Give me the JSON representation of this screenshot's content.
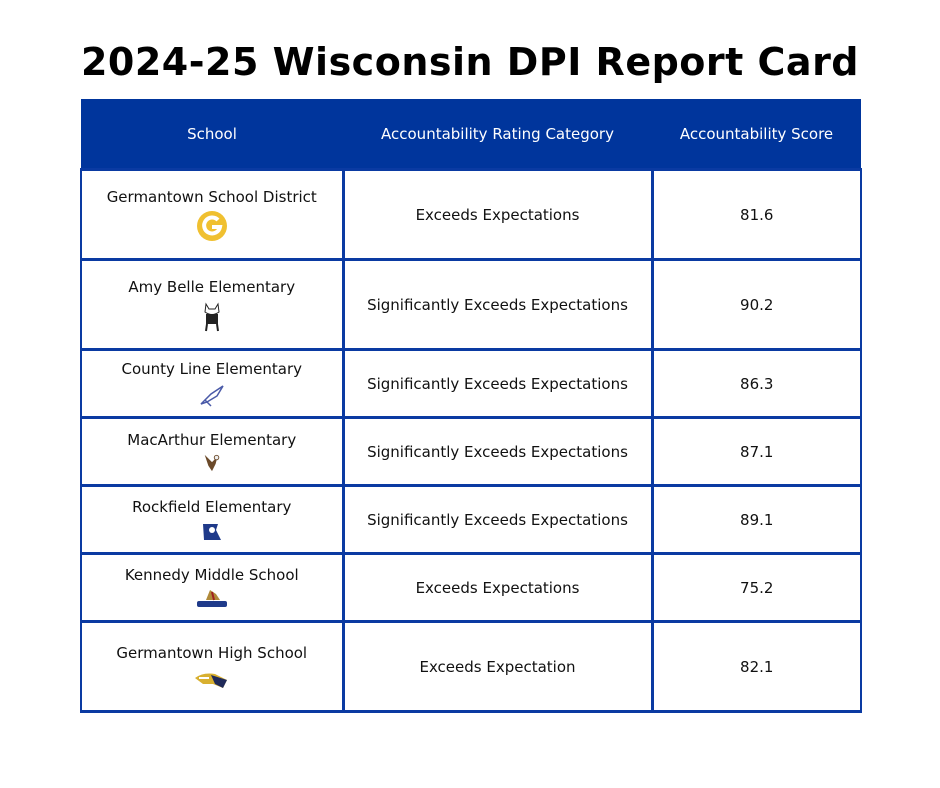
{
  "title": "2024-25 Wisconsin DPI Report Card",
  "table": {
    "headers": [
      "School",
      "Accountability Rating Category",
      "Accountability Score"
    ],
    "rows": [
      {
        "school": "Germantown School District",
        "rating": "Exceeds Expectations",
        "score": "81.6",
        "logo": "g-logo-icon"
      },
      {
        "school": "Amy Belle Elementary",
        "rating": "Significantly Exceeds Expectations",
        "score": "90.2",
        "logo": "mascot-cat-icon"
      },
      {
        "school": "County Line Elementary",
        "rating": "Significantly Exceeds Expectations",
        "score": "86.3",
        "logo": "mascot-bird-icon"
      },
      {
        "school": "MacArthur Elementary",
        "rating": "Significantly Exceeds Expectations",
        "score": "87.1",
        "logo": "eagle-icon"
      },
      {
        "school": "Rockfield Elementary",
        "rating": "Significantly Exceeds Expectations",
        "score": "89.1",
        "logo": "rockfield-r-icon"
      },
      {
        "school": "Kennedy Middle School",
        "rating": "Exceeds Expectations",
        "score": "75.2",
        "logo": "knight-icon"
      },
      {
        "school": "Germantown High School",
        "rating": "Exceeds Expectation",
        "score": "82.1",
        "logo": "warhawk-icon"
      }
    ]
  },
  "colors": {
    "header_bg": "#00359c",
    "border": "#0a3aa2",
    "g_logo": "#f0c030"
  }
}
